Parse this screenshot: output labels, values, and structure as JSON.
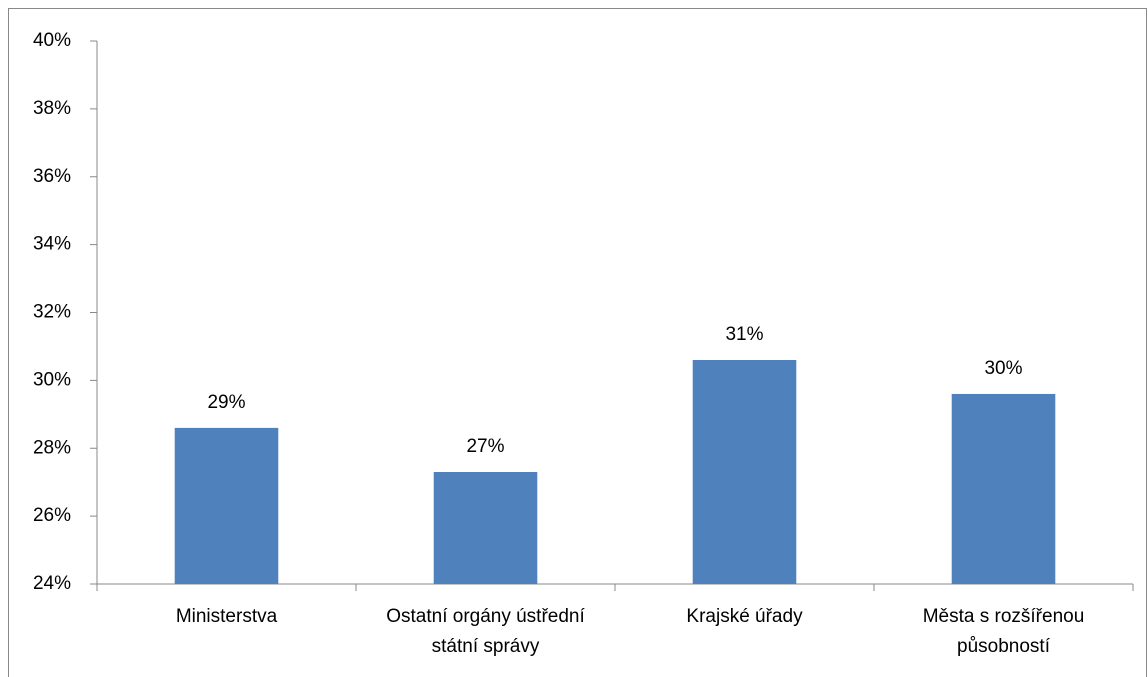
{
  "chart_data": {
    "type": "bar",
    "categories": [
      "Ministerstva",
      "Ostatní orgány ústřední státní správy",
      "Krajské úřady",
      "Města s rozšířenou působností"
    ],
    "values": [
      28.6,
      27.3,
      30.6,
      29.6
    ],
    "value_labels": [
      "29%",
      "27%",
      "31%",
      "30%"
    ],
    "color": "#4f81bd",
    "ylim": [
      24,
      40
    ],
    "yticks": [
      {
        "value": 24,
        "label": "24%"
      },
      {
        "value": 26,
        "label": "26%"
      },
      {
        "value": 28,
        "label": "28%"
      },
      {
        "value": 30,
        "label": "30%"
      },
      {
        "value": 32,
        "label": "32%"
      },
      {
        "value": 34,
        "label": "34%"
      },
      {
        "value": 36,
        "label": "36%"
      },
      {
        "value": 38,
        "label": "38%"
      },
      {
        "value": 40,
        "label": "40%"
      }
    ],
    "grid": false
  }
}
